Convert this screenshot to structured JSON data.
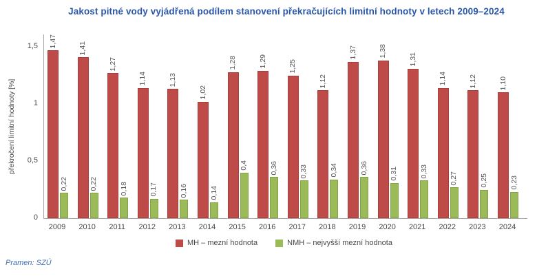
{
  "title": "Jakost pitné vody vyjádřená podílem stanovení překračujících limitní hodnoty v letech 2009–2024",
  "source": "Pramen: SZÚ",
  "legend": {
    "mh": "MH – mezní hodnota",
    "nmh": "NMH – nejvyšší mezní hodnota"
  },
  "colors": {
    "mh_bar": "#BE4B48",
    "mh_bar_border": "#A53E3C",
    "nmh_bar": "#9BBB59",
    "nmh_bar_border": "#84A349",
    "title_text": "#2B57A8",
    "axis_line": "#A6A6A6",
    "label_text": "#474747",
    "source_text": "#4070B8"
  },
  "chart_data": {
    "type": "bar",
    "title": "Jakost pitné vody vyjádřená podílem stanovení překračujících limitní hodnoty v letech 2009–2024",
    "xlabel": "",
    "ylabel": "překročení limitní hodnoty [%]",
    "ylim": [
      0,
      1.5
    ],
    "grid": false,
    "legend_position": "bottom",
    "categories": [
      "2009",
      "2010",
      "2011",
      "2012",
      "2013",
      "2014",
      "2015",
      "2016",
      "2017",
      "2018",
      "2019",
      "2020",
      "2021",
      "2022",
      "2023",
      "2024"
    ],
    "yticks": {
      "values": [
        0,
        0.5,
        1,
        1.5
      ],
      "labels": [
        "0",
        "0,5",
        "1",
        "1,5"
      ]
    },
    "series": [
      {
        "name": "MH – mezní hodnota",
        "color": "#BE4B48",
        "values": [
          1.47,
          1.41,
          1.27,
          1.14,
          1.13,
          1.02,
          1.28,
          1.29,
          1.25,
          1.12,
          1.37,
          1.38,
          1.31,
          1.14,
          1.12,
          1.1
        ],
        "labels": [
          "1,47",
          "1,41",
          "1,27",
          "1,14",
          "1,13",
          "1,02",
          "1,28",
          "1,29",
          "1,25",
          "1,12",
          "1,37",
          "1,38",
          "1,31",
          "1,14",
          "1,12",
          "1,10"
        ]
      },
      {
        "name": "NMH – nejvyšší mezní hodnota",
        "color": "#9BBB59",
        "values": [
          0.22,
          0.22,
          0.18,
          0.17,
          0.16,
          0.14,
          0.4,
          0.36,
          0.33,
          0.34,
          0.36,
          0.31,
          0.33,
          0.27,
          0.25,
          0.23
        ],
        "labels": [
          "0,22",
          "0,22",
          "0,18",
          "0,17",
          "0,16",
          "0,14",
          "0,4",
          "0,36",
          "0,33",
          "0,34",
          "0,36",
          "0,31",
          "0,33",
          "0,27",
          "0,25",
          "0,23"
        ]
      }
    ]
  }
}
